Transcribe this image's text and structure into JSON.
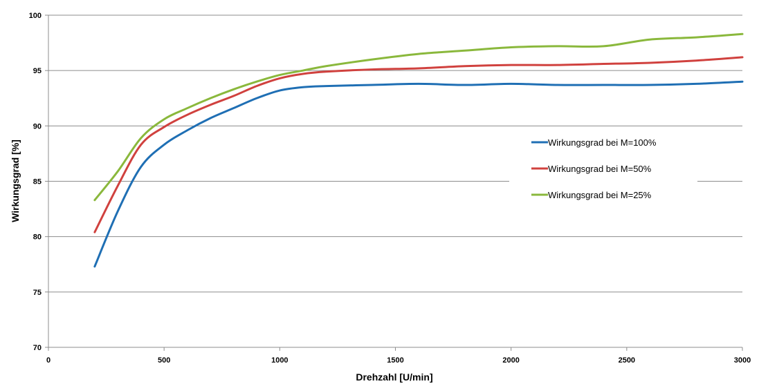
{
  "chart_data": {
    "type": "line",
    "title": "",
    "xlabel": "Drehzahl [U/min]",
    "ylabel": "Wirkungsgrad  [%]",
    "xlim": [
      0,
      3000
    ],
    "ylim": [
      70,
      100
    ],
    "xticks": [
      0,
      500,
      1000,
      1500,
      2000,
      2500,
      3000
    ],
    "yticks": [
      70,
      75,
      80,
      85,
      90,
      95,
      100
    ],
    "grid": "horizontal",
    "legend_position": "right",
    "series": [
      {
        "name": "Wirkungsgrad bei M=100%",
        "color": "#1f6fb4",
        "x": [
          200,
          300,
          400,
          500,
          600,
          700,
          800,
          900,
          1000,
          1100,
          1200,
          1400,
          1600,
          1800,
          2000,
          2200,
          2400,
          2600,
          2800,
          3000
        ],
        "y": [
          77.3,
          82.3,
          86.3,
          88.3,
          89.6,
          90.7,
          91.6,
          92.5,
          93.2,
          93.5,
          93.6,
          93.7,
          93.8,
          93.7,
          93.8,
          93.7,
          93.7,
          93.7,
          93.8,
          94.0
        ]
      },
      {
        "name": "Wirkungsgrad bei M=50%",
        "color": "#d0413e",
        "x": [
          200,
          300,
          400,
          500,
          600,
          700,
          800,
          900,
          1000,
          1100,
          1200,
          1400,
          1600,
          1800,
          2000,
          2200,
          2400,
          2600,
          2800,
          3000
        ],
        "y": [
          80.4,
          84.6,
          88.3,
          89.9,
          91.0,
          91.9,
          92.7,
          93.6,
          94.3,
          94.7,
          94.9,
          95.1,
          95.2,
          95.4,
          95.5,
          95.5,
          95.6,
          95.7,
          95.9,
          96.2
        ]
      },
      {
        "name": "Wirkungsgrad bei M=25%",
        "color": "#8ab83c",
        "x": [
          200,
          300,
          400,
          500,
          600,
          700,
          800,
          900,
          1000,
          1100,
          1200,
          1400,
          1600,
          1800,
          2000,
          2200,
          2400,
          2600,
          2800,
          3000
        ],
        "y": [
          83.3,
          85.9,
          88.9,
          90.6,
          91.6,
          92.5,
          93.3,
          94.0,
          94.6,
          95.0,
          95.4,
          96.0,
          96.5,
          96.8,
          97.1,
          97.2,
          97.2,
          97.8,
          98.0,
          98.3
        ]
      }
    ]
  }
}
